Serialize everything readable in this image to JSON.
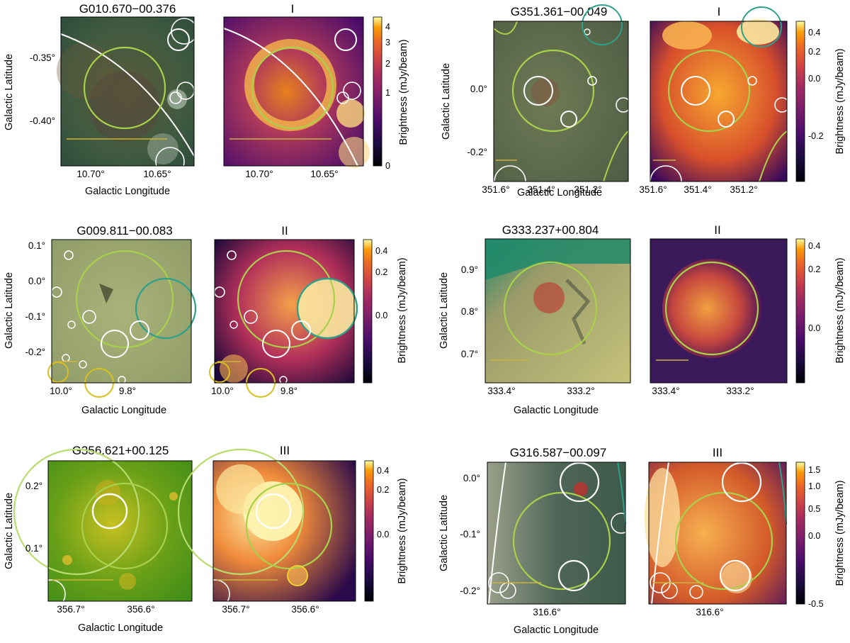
{
  "figure": {
    "panels": [
      {
        "source": "G010.670−00.376",
        "class": "I",
        "x_label": "Galactic Longitude",
        "y_label": "Galactic Latitude",
        "x_ticks": [
          "10.70°",
          "10.65°"
        ],
        "y_ticks": [
          "-0.35°",
          "-0.40°"
        ],
        "colorbar_label": "Brightness (mJy/beam)",
        "colorbar_ticks": [
          "4",
          "3",
          "2",
          "1",
          "0"
        ]
      },
      {
        "source": "G351.361−00.049",
        "class": "I",
        "x_label": "Galactic Longitude",
        "y_label": "Galactic Latitude",
        "x_ticks": [
          "351.6°",
          "351.4°",
          "351.2°"
        ],
        "y_ticks": [
          "0.0°",
          "-0.2°"
        ],
        "colorbar_label": "Brightness (mJy/beam)",
        "colorbar_ticks": [
          "0.4",
          "0.2",
          "0.0",
          "-0.2"
        ]
      },
      {
        "source": "G009.811−00.083",
        "class": "II",
        "x_label": "Galactic Longitude",
        "y_label": "Galactic Latitude",
        "x_ticks": [
          "10.0°",
          "9.8°"
        ],
        "y_ticks": [
          "0.1°",
          "0.0°",
          "-0.1°",
          "-0.2°"
        ],
        "colorbar_label": "Brightness (mJy/beam)",
        "colorbar_ticks": [
          "0.4",
          "0.2",
          "0.0"
        ]
      },
      {
        "source": "G333.237+00.804",
        "class": "II",
        "x_label": "Galactic Longitude",
        "y_label": "Galactic Latitude",
        "x_ticks": [
          "333.4°",
          "333.2°"
        ],
        "y_ticks": [
          "0.9°",
          "0.8°",
          "0.7°"
        ],
        "colorbar_label": "Brightness (mJy/beam)",
        "colorbar_ticks": [
          "0.4",
          "0.2",
          "0.0"
        ]
      },
      {
        "source": "G356.621+00.125",
        "class": "III",
        "x_label": "Galactic Longitude",
        "y_label": "Galactic Latitude",
        "x_ticks": [
          "356.7°",
          "356.6°"
        ],
        "y_ticks": [
          "0.2°",
          "0.1°"
        ],
        "colorbar_label": "Brightness (mJy/beam)",
        "colorbar_ticks": [
          "0.4",
          "0.2",
          "0.0"
        ]
      },
      {
        "source": "G316.587−00.097",
        "class": "III",
        "x_label": "Galactic Longitude",
        "y_label": "Galactic Latitude",
        "x_ticks": [
          "316.6°"
        ],
        "y_ticks": [
          "0.0°",
          "-0.1°",
          "-0.2°"
        ],
        "colorbar_label": "Brightness (mJy/beam)",
        "colorbar_ticks": [
          "1.5",
          "1.0",
          "0.5",
          "0.0",
          "-0.5"
        ]
      }
    ]
  }
}
